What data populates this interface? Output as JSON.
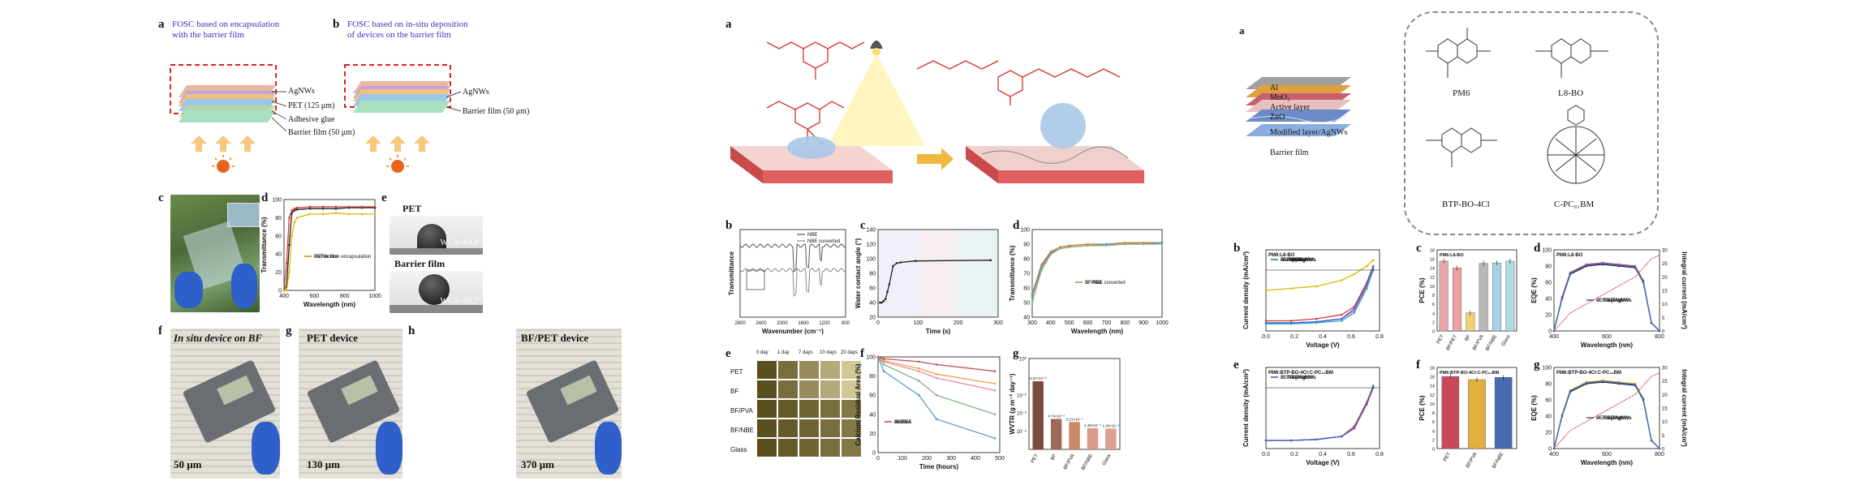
{
  "left": {
    "a": {
      "letter": "a",
      "caption_line1": "FOSC  based  on  encapsulation",
      "caption_line2": "with the barrier film",
      "layers": [
        "AgNWs",
        "PET (125 μm)",
        "Adhesive glue",
        "Barrier film (50 μm)"
      ]
    },
    "b": {
      "letter": "b",
      "caption_line1": "FOSC based on in-situ deposition",
      "caption_line2": "of devices on the barrier film",
      "layers": [
        "AgNWs",
        "Barrier film (50 μm)"
      ]
    },
    "c": {
      "letter": "c"
    },
    "d": {
      "letter": "d",
      "ylabel": "Transmittance (%)",
      "xlabel": "Wavelength (nm)",
      "xticks": [
        "400",
        "600",
        "800",
        "1000"
      ],
      "yticks": [
        "0",
        "20",
        "40",
        "60",
        "80",
        "100"
      ],
      "legend": [
        "PET",
        "Barrier film",
        "PET/bottom encapsulation"
      ]
    },
    "e": {
      "letter": "e",
      "pet_label": "PET",
      "pet_wca": "WCA=64.4°",
      "bf_label": "Barrier film",
      "bf_wca": "WCA=94.7°"
    },
    "f": {
      "letter": "f",
      "title": "In situ device on BF",
      "thickness": "50 μm"
    },
    "g": {
      "letter": "g",
      "title": "PET device",
      "thickness": "130 μm"
    },
    "h": {
      "letter": "h",
      "title": "BF/PET device",
      "thickness": "370 μm"
    }
  },
  "middle": {
    "a": {
      "letter": "a"
    },
    "b": {
      "letter": "b",
      "ylabel": "Transmittance",
      "xlabel": "Wavenumber (cm⁻¹)",
      "xticks": [
        "2800",
        "2400",
        "2000",
        "1600",
        "1200",
        "800"
      ],
      "legend": [
        "NBE",
        "NBE converted"
      ]
    },
    "c": {
      "letter": "c",
      "ylabel": "Water contact angle (°)",
      "xlabel": "Time (s)",
      "xticks": [
        "0",
        "100",
        "200",
        "300"
      ],
      "yticks": [
        "20",
        "40",
        "60",
        "80",
        "100",
        "120",
        "140"
      ]
    },
    "d": {
      "letter": "d",
      "ylabel": "Transmittance (%)",
      "xlabel": "Wavelength (nm)",
      "xticks": [
        "300",
        "400",
        "500",
        "600",
        "700",
        "800",
        "900",
        "1000"
      ],
      "yticks": [
        "40",
        "50",
        "60",
        "70",
        "80",
        "90",
        "100"
      ],
      "legend": [
        "BF",
        "BF/PVA",
        "BF/NBE",
        "BF/NBE converted"
      ]
    },
    "e": {
      "letter": "e",
      "days": [
        "0 day",
        "1 day",
        "7 days",
        "10 days",
        "20 days"
      ],
      "rows": [
        "PET",
        "BF",
        "BF/PVA",
        "BF/NBE",
        "Glass"
      ]
    },
    "f": {
      "letter": "f",
      "ylabel": "Calcium Residual Area (%)",
      "xlabel": "Time (hours)",
      "xticks": [
        "0",
        "100",
        "200",
        "300",
        "400",
        "500"
      ],
      "yticks": [
        "0",
        "20",
        "40",
        "60",
        "80",
        "100"
      ],
      "legend": [
        "PET",
        "BF",
        "BF/PVA",
        "BF/NBE",
        "Glass"
      ]
    },
    "g": {
      "letter": "g",
      "ylabel": "WVTR (g m⁻² day⁻¹)",
      "categories": [
        "PET",
        "BF",
        "BF/PVA",
        "BF/NBE",
        "Glass"
      ],
      "bar_labels": [
        "5.57×10⁻²",
        "4.74×10⁻⁴",
        "3.21×10⁻⁴",
        "1.48×10⁻⁴",
        "1.40×10⁻⁴"
      ],
      "yticks": [
        "10⁰",
        "10⁻²",
        "10⁻³",
        "10⁻⁴"
      ]
    }
  },
  "right": {
    "a": {
      "letter": "a",
      "layers": [
        "Al",
        "MoO₃",
        "Active layer",
        "ZnO",
        "Modified layer/AgNWs",
        "Barrier film"
      ],
      "molecules": [
        "PM6",
        "L8-BO",
        "BTP-BO-4Cl",
        "C-PC₆₁BM"
      ]
    },
    "b": {
      "letter": "b",
      "title": "PM6:L8-BO",
      "ylabel": "Current density (mA/cm²)",
      "xlabel": "Voltage (V)",
      "xticks": [
        "0.0",
        "0.2",
        "0.4",
        "0.6",
        "0.8"
      ],
      "legend": [
        "PET/AgNWs",
        "BF/PET/AgNWs",
        "BF/AgNWs",
        "BF/PVA/AgNWs",
        "BF/NBE/AgNWs",
        "Glass/ITO"
      ]
    },
    "c": {
      "letter": "c",
      "title": "PM6:L8-BO",
      "ylabel": "PCE (%)",
      "categories": [
        "PET",
        "BF/PET",
        "BF",
        "BF/PVA",
        "BF/NBE",
        "Glass"
      ],
      "yticks": [
        "0",
        "2",
        "4",
        "6",
        "8",
        "10",
        "12",
        "14",
        "16",
        "18"
      ]
    },
    "d": {
      "letter": "d",
      "title": "PM6:L8-BO",
      "ylabel": "EQE (%)",
      "ylabel2": "Integral current (mA/cm²)",
      "xlabel": "Wavelength (nm)",
      "xticks": [
        "400",
        "600",
        "800"
      ],
      "yticks": [
        "0",
        "20",
        "40",
        "60",
        "80",
        "100"
      ],
      "yticks2": [
        "0",
        "5",
        "10",
        "15",
        "20",
        "25",
        "30"
      ],
      "legend": [
        "PET/AgNWs",
        "BF/PVA/AgNWs",
        "BF/NBE/AgNWs"
      ]
    },
    "e": {
      "letter": "e",
      "title": "PM6:BTP-BO-4Cl:C-PC₆₁BM",
      "ylabel": "Current density (mA/cm²)",
      "xlabel": "Voltage (V)",
      "xticks": [
        "0.0",
        "0.2",
        "0.4",
        "0.6",
        "0.8"
      ],
      "legend": [
        "PET/AgNWs",
        "BF/PVA/AgNWs",
        "BF/NBE/AgNWs"
      ]
    },
    "f": {
      "letter": "f",
      "title": "PM6:BTP-BO-4Cl:C-PC₆₁BM",
      "ylabel": "PCE (%)",
      "categories": [
        "PET",
        "BF/PVA",
        "BF/NBE"
      ],
      "yticks": [
        "0",
        "2",
        "4",
        "6",
        "8",
        "10",
        "12",
        "14",
        "16",
        "18"
      ]
    },
    "g": {
      "letter": "g",
      "title": "PM6:BTP-BO-4Cl:C-PC₆₁BM",
      "ylabel": "EQE (%)",
      "ylabel2": "Integral current (mA/cm²)",
      "xlabel": "Wavelength (nm)",
      "xticks": [
        "400",
        "600",
        "800"
      ],
      "yticks": [
        "0",
        "20",
        "40",
        "60",
        "80",
        "100"
      ],
      "yticks2": [
        "0",
        "5",
        "10",
        "15",
        "20",
        "25",
        "30"
      ],
      "legend": [
        "PET/AgNWs",
        "BF/PVA/AgNWs",
        "BF/NBE/AgNWs"
      ]
    }
  },
  "chart_data": [
    {
      "type": "line",
      "panel": "left-d",
      "xlabel": "Wavelength (nm)",
      "ylabel": "Transmittance (%)",
      "xlim": [
        300,
        1000
      ],
      "ylim": [
        0,
        100
      ],
      "x": [
        300,
        320,
        340,
        360,
        380,
        400,
        500,
        600,
        700,
        800,
        900,
        1000
      ],
      "series": [
        {
          "name": "PET",
          "color": "#222222",
          "values": [
            0,
            5,
            50,
            85,
            88,
            89,
            90,
            90,
            90,
            91,
            91,
            91
          ]
        },
        {
          "name": "Barrier film",
          "color": "#d23a3a",
          "values": [
            0,
            30,
            80,
            88,
            90,
            91,
            92,
            92,
            92,
            92,
            92,
            92
          ]
        },
        {
          "name": "PET/bottom encapsulation",
          "color": "#e2b400",
          "values": [
            0,
            0,
            20,
            60,
            75,
            80,
            84,
            84,
            85,
            84,
            84,
            84
          ]
        }
      ]
    },
    {
      "type": "line",
      "panel": "middle-c",
      "xlabel": "Time (s)",
      "ylabel": "Water contact angle (°)",
      "xlim": [
        0,
        320
      ],
      "ylim": [
        20,
        140
      ],
      "x": [
        5,
        10,
        15,
        20,
        25,
        30,
        40,
        50,
        60,
        100,
        300
      ],
      "series": [
        {
          "name": "",
          "color": "#222222",
          "values": [
            40,
            40,
            42,
            45,
            55,
            65,
            90,
            94,
            95,
            97,
            98
          ]
        }
      ]
    },
    {
      "type": "line",
      "panel": "middle-d",
      "xlabel": "Wavelength (nm)",
      "ylabel": "Transmittance (%)",
      "xlim": [
        300,
        1000
      ],
      "ylim": [
        40,
        100
      ],
      "x": [
        300,
        350,
        400,
        450,
        500,
        600,
        700,
        800,
        900,
        1000
      ],
      "series": [
        {
          "name": "BF",
          "color": "#8a8a8a",
          "values": [
            55,
            75,
            84,
            87,
            88,
            89,
            90,
            90,
            91,
            91
          ]
        },
        {
          "name": "BF/PVA",
          "color": "#e07a3a",
          "values": [
            56,
            76,
            85,
            88,
            89,
            90,
            90,
            91,
            91,
            91
          ]
        },
        {
          "name": "BF/NBE",
          "color": "#5a8ac6",
          "values": [
            54,
            74,
            84,
            87,
            88,
            89,
            90,
            90,
            90,
            91
          ]
        },
        {
          "name": "BF/NBE converted",
          "color": "#8ab86a",
          "values": [
            50,
            72,
            83,
            87,
            88,
            89,
            89,
            90,
            90,
            90
          ]
        }
      ]
    },
    {
      "type": "line",
      "panel": "middle-f",
      "xlabel": "Time (hours)",
      "ylabel": "Calcium Residual Area (%)",
      "xlim": [
        0,
        500
      ],
      "ylim": [
        0,
        100
      ],
      "x": [
        0,
        24,
        168,
        240,
        480
      ],
      "series": [
        {
          "name": "PET",
          "color": "#5b9bd5",
          "values": [
            100,
            85,
            60,
            35,
            15
          ]
        },
        {
          "name": "BF",
          "color": "#7fb07f",
          "values": [
            100,
            92,
            75,
            60,
            40
          ]
        },
        {
          "name": "BF/PVA",
          "color": "#e88aa0",
          "values": [
            100,
            95,
            85,
            78,
            65
          ]
        },
        {
          "name": "BF/NBE",
          "color": "#f2a24a",
          "values": [
            100,
            96,
            88,
            82,
            72
          ]
        },
        {
          "name": "Glass",
          "color": "#c0504d",
          "values": [
            100,
            98,
            95,
            92,
            85
          ]
        }
      ]
    },
    {
      "type": "bar",
      "panel": "middle-g",
      "ylabel": "WVTR (g m⁻² day⁻¹)",
      "log_scale": true,
      "categories": [
        "PET",
        "BF",
        "BF/PVA",
        "BF/NBE",
        "Glass"
      ],
      "values": [
        0.0557,
        0.000474,
        0.000321,
        0.000148,
        0.00014
      ],
      "colors": [
        "#7a4a3a",
        "#9c6a5a",
        "#c98a6a",
        "#d99a8a",
        "#e0a090"
      ]
    },
    {
      "type": "line",
      "panel": "right-b",
      "xlabel": "Voltage (V)",
      "ylabel": "Current density (mA/cm²)",
      "xlim": [
        0,
        0.9
      ],
      "x": [
        0.0,
        0.2,
        0.4,
        0.6,
        0.7,
        0.8,
        0.85
      ],
      "series": [
        {
          "name": "PET/AgNWs",
          "color": "#222222",
          "values": [
            -26,
            -26,
            -25.5,
            -24,
            -20,
            -8,
            0
          ]
        },
        {
          "name": "BF/PET/AgNWs",
          "color": "#d23a3a",
          "values": [
            -25,
            -25,
            -24,
            -22,
            -18,
            -6,
            2
          ]
        },
        {
          "name": "BF/AgNWs",
          "color": "#e2b400",
          "values": [
            -10,
            -9,
            -8,
            -5,
            -2,
            2,
            5
          ]
        },
        {
          "name": "BF/PVA/AgNWs",
          "color": "#e07ab0",
          "values": [
            -26,
            -26,
            -25.5,
            -24,
            -20,
            -8,
            0
          ]
        },
        {
          "name": "BF/NBE/AgNWs",
          "color": "#3a6ad2",
          "values": [
            -26,
            -26,
            -25.5,
            -24,
            -19,
            -7,
            1
          ]
        },
        {
          "name": "Glass/ITO",
          "color": "#3aa0d2",
          "values": [
            -26.5,
            -26.5,
            -26,
            -25,
            -21,
            -9,
            0
          ]
        }
      ]
    },
    {
      "type": "bar",
      "panel": "right-c",
      "ylabel": "PCE (%)",
      "ylim": [
        0,
        18
      ],
      "categories": [
        "PET",
        "BF/PET",
        "BF",
        "BF/PVA",
        "BF/NBE",
        "Glass"
      ],
      "values": [
        15.5,
        14.0,
        4.0,
        15.0,
        15.1,
        15.5
      ],
      "colors": [
        "#e8a8a8",
        "#f0a0a0",
        "#f2d070",
        "#b8b8b8",
        "#a8d0e8",
        "#b0d8e0"
      ]
    },
    {
      "type": "line",
      "panel": "right-d",
      "xlabel": "Wavelength (nm)",
      "ylabel": "EQE (%)",
      "xlim": [
        300,
        950
      ],
      "ylim": [
        0,
        100
      ],
      "x": [
        300,
        350,
        400,
        500,
        600,
        700,
        800,
        850,
        900,
        950
      ],
      "series": [
        {
          "name": "PET/AgNWs",
          "color": "#222222",
          "values": [
            0,
            40,
            70,
            80,
            82,
            80,
            78,
            60,
            10,
            0
          ]
        },
        {
          "name": "BF/PVA/AgNWs",
          "color": "#d23a3a",
          "values": [
            0,
            42,
            72,
            82,
            84,
            82,
            80,
            62,
            10,
            0
          ]
        },
        {
          "name": "BF/NBE/AgNWs",
          "color": "#3a6ad2",
          "values": [
            0,
            41,
            71,
            81,
            83,
            81,
            79,
            61,
            10,
            0
          ]
        }
      ]
    },
    {
      "type": "line",
      "panel": "right-e",
      "xlabel": "Voltage (V)",
      "ylabel": "Current density (mA/cm²)",
      "xlim": [
        0,
        0.9
      ],
      "x": [
        0.0,
        0.2,
        0.4,
        0.6,
        0.7,
        0.8,
        0.85
      ],
      "series": [
        {
          "name": "PET/AgNWs",
          "color": "#222222",
          "values": [
            -26,
            -26,
            -25.5,
            -24,
            -20,
            -8,
            0
          ]
        },
        {
          "name": "BF/PVA/AgNWs",
          "color": "#d23a3a",
          "values": [
            -26,
            -26,
            -25.5,
            -24,
            -20,
            -8,
            0
          ]
        },
        {
          "name": "BF/NBE/AgNWs",
          "color": "#3a6ad2",
          "values": [
            -26,
            -26,
            -25.5,
            -24,
            -19,
            -7,
            1
          ]
        }
      ]
    },
    {
      "type": "bar",
      "panel": "right-f",
      "ylabel": "PCE (%)",
      "ylim": [
        0,
        18
      ],
      "categories": [
        "PET",
        "BF/PVA",
        "BF/NBE"
      ],
      "values": [
        16.0,
        15.3,
        15.8
      ],
      "colors": [
        "#c84a5a",
        "#e0b040",
        "#4a6ab0"
      ]
    },
    {
      "type": "line",
      "panel": "right-g",
      "xlabel": "Wavelength (nm)",
      "ylabel": "EQE (%)",
      "xlim": [
        300,
        950
      ],
      "ylim": [
        0,
        100
      ],
      "x": [
        300,
        350,
        400,
        500,
        600,
        700,
        800,
        850,
        900,
        950
      ],
      "series": [
        {
          "name": "PET/AgNWs",
          "color": "#222222",
          "values": [
            0,
            40,
            70,
            80,
            82,
            80,
            78,
            60,
            10,
            0
          ]
        },
        {
          "name": "BF/PVA/AgNWs",
          "color": "#e2b400",
          "values": [
            0,
            42,
            72,
            82,
            84,
            82,
            80,
            62,
            10,
            0
          ]
        },
        {
          "name": "BF/NBE/AgNWs",
          "color": "#3a6ad2",
          "values": [
            0,
            41,
            71,
            81,
            83,
            81,
            79,
            61,
            10,
            0
          ]
        }
      ]
    }
  ]
}
